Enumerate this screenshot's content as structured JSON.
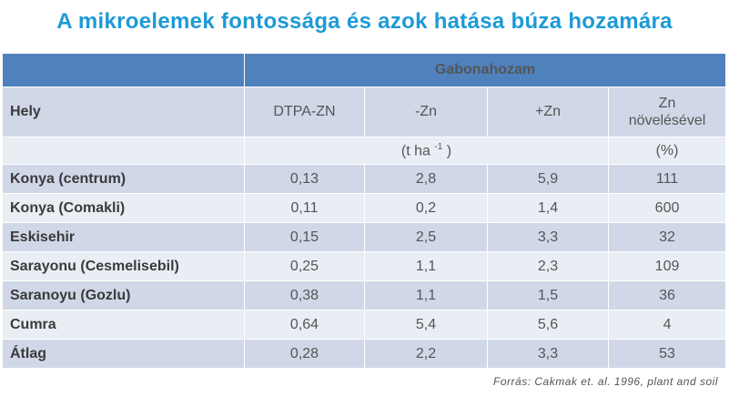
{
  "header": {
    "title": "A mikroelemek fontossága és azok hatása búza hozamára"
  },
  "table": {
    "group_header": "Gabonahozam",
    "columns": [
      "Hely",
      "DTPA-ZN",
      "-Zn",
      "+Zn",
      "Zn növelésével"
    ],
    "units": {
      "yield": {
        "prefix": "(t ha",
        "exponent": "-1",
        "suffix": ")"
      },
      "percent": "(%)"
    },
    "rows": [
      [
        "Konya (centrum)",
        "0,13",
        "2,8",
        "5,9",
        "111"
      ],
      [
        "Konya (Comakli)",
        "0,11",
        "0,2",
        "1,4",
        "600"
      ],
      [
        "Eskisehir",
        "0,15",
        "2,5",
        "3,3",
        "32"
      ],
      [
        "Sarayonu (Cesmelisebil)",
        "0,25",
        "1,1",
        "2,3",
        "109"
      ],
      [
        "Saranoyu (Gozlu)",
        "0,38",
        "1,1",
        "1,5",
        "36"
      ],
      [
        "Cumra",
        "0,64",
        "5,4",
        "5,6",
        "4"
      ],
      [
        "Átlag",
        "0,28",
        "2,2",
        "3,3",
        "53"
      ]
    ]
  },
  "footer": {
    "source": "Forrás: Cakmak et. al. 1996, plant and soil"
  }
}
